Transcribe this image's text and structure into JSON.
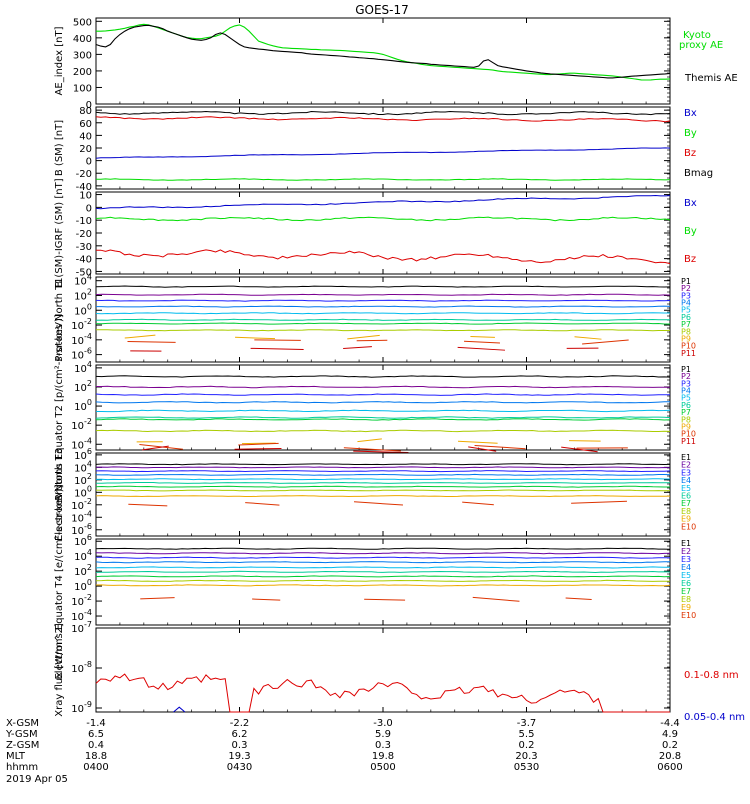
{
  "title": "GOES-17",
  "colors": {
    "black": "#000000",
    "green": "#00dd00",
    "blue": "#0000cc",
    "red": "#dd0000",
    "P": [
      "#000000",
      "#7a0090",
      "#2020ff",
      "#0077ee",
      "#00bbee",
      "#00cc99",
      "#00cc33",
      "#aacc00",
      "#eeaa00",
      "#dd3300",
      "#cc0000"
    ],
    "E": [
      "#000000",
      "#6a00a0",
      "#2020ff",
      "#0077ee",
      "#00bbee",
      "#00cc99",
      "#00cc33",
      "#aacc00",
      "#eeaa00",
      "#dd3300"
    ]
  },
  "footer": {
    "row_labels": [
      "X-GSM",
      "Y-GSM",
      "Z-GSM",
      "MLT",
      "hhmm"
    ],
    "date": "2019 Apr 05",
    "columns": [
      [
        "-1.4",
        "6.5",
        "0.4",
        "18.8",
        "0400"
      ],
      [
        "-2.2",
        "6.2",
        "0.3",
        "19.3",
        "0430"
      ],
      [
        "-3.0",
        "5.9",
        "0.3",
        "19.8",
        "0500"
      ],
      [
        "-3.7",
        "5.5",
        "0.2",
        "20.3",
        "0530"
      ],
      [
        "-4.4",
        "4.9",
        "0.2",
        "20.8",
        "0600"
      ]
    ]
  },
  "chart_data": [
    {
      "type": "line",
      "ylabel": "AE_index [nT]",
      "yticks": [
        "500",
        "400",
        "300",
        "200",
        "100",
        "0"
      ],
      "ylim": [
        0,
        520
      ],
      "x": [
        0,
        1,
        2,
        3,
        4,
        5,
        6,
        7,
        8,
        9,
        10,
        11,
        12,
        13,
        14,
        15,
        16,
        17,
        18,
        19,
        20,
        21,
        22,
        23,
        24,
        25,
        26,
        27,
        28,
        29,
        30,
        31,
        32,
        33,
        34,
        35,
        36,
        37,
        38,
        39,
        40,
        41,
        42,
        43,
        44,
        45,
        46,
        47,
        48,
        49,
        50,
        51,
        52,
        53,
        54,
        55,
        56,
        57,
        58,
        59,
        60,
        61,
        62,
        63,
        64,
        65,
        66,
        67,
        68,
        69,
        70,
        71,
        72,
        73,
        74,
        75,
        76,
        77,
        78,
        79,
        80,
        81,
        82,
        83,
        84,
        85,
        86,
        87,
        88,
        89,
        90,
        91,
        92,
        93,
        94,
        95,
        96,
        97,
        98,
        99,
        100,
        101,
        102,
        103,
        104,
        105,
        106,
        107,
        108,
        109,
        110,
        111,
        112,
        113,
        114,
        115,
        116,
        117,
        118,
        119,
        120
      ],
      "series": [
        {
          "name": "Kyoto proxy AE",
          "color": "#00dd00",
          "values": [
            440,
            440,
            442,
            445,
            448,
            452,
            458,
            465,
            470,
            478,
            482,
            478,
            470,
            460,
            450,
            440,
            430,
            420,
            410,
            402,
            398,
            395,
            395,
            400,
            405,
            410,
            420,
            440,
            460,
            472,
            478,
            465,
            440,
            410,
            380,
            370,
            360,
            352,
            345,
            340,
            338,
            336,
            335,
            334,
            332,
            330,
            330,
            328,
            327,
            326,
            325,
            324,
            322,
            320,
            318,
            316,
            314,
            312,
            310,
            306,
            300,
            290,
            280,
            270,
            262,
            255,
            250,
            246,
            240,
            236,
            232,
            230,
            228,
            226,
            224,
            222,
            220,
            218,
            216,
            214,
            212,
            210,
            208,
            205,
            200,
            196,
            194,
            192,
            190,
            188,
            186,
            184,
            182,
            180,
            178,
            178,
            180,
            182,
            184,
            186,
            186,
            184,
            182,
            180,
            178,
            176,
            174,
            172,
            170,
            166,
            162,
            158,
            154,
            150,
            146,
            145,
            146,
            148,
            150,
            150,
            152
          ]
        },
        {
          "name": "Themis AE",
          "color": "#000000",
          "values": [
            360,
            350,
            345,
            360,
            395,
            420,
            440,
            455,
            465,
            470,
            474,
            476,
            470,
            465,
            455,
            440,
            430,
            420,
            410,
            400,
            392,
            388,
            385,
            390,
            400,
            420,
            430,
            420,
            400,
            380,
            360,
            345,
            340,
            336,
            332,
            330,
            326,
            322,
            320,
            318,
            316,
            314,
            312,
            310,
            305,
            302,
            300,
            298,
            296,
            294,
            292,
            290,
            288,
            285,
            283,
            280,
            278,
            276,
            274,
            270,
            268,
            265,
            262,
            258,
            255,
            252,
            250,
            248,
            246,
            244,
            240,
            238,
            236,
            234,
            232,
            230,
            228,
            226,
            224,
            222,
            230,
            260,
            268,
            250,
            232,
            225,
            220,
            215,
            210,
            205,
            200,
            196,
            192,
            188,
            185,
            182,
            180,
            178,
            176,
            174,
            172,
            170,
            168,
            166,
            164,
            162,
            160,
            158,
            158,
            160,
            162,
            165,
            168,
            170,
            172,
            174,
            176,
            178,
            180,
            182,
            185
          ]
        }
      ]
    },
    {
      "type": "line",
      "ylabel": "B (SM) [nT]",
      "yticks": [
        "80",
        "60",
        "40",
        "20",
        "0",
        "-20",
        "-40"
      ],
      "ylim": [
        -45,
        85
      ],
      "series": [
        {
          "name": "Bx",
          "color": "#0000cc",
          "start": 4,
          "end": 20,
          "amp": 0.6
        },
        {
          "name": "By",
          "color": "#00dd00",
          "start": -30,
          "end": -30,
          "amp": 0.8
        },
        {
          "name": "Bz",
          "color": "#dd0000",
          "start": 68,
          "end": 64,
          "amp": 1.6
        },
        {
          "name": "Bmag",
          "color": "#000000",
          "start": 76,
          "end": 75,
          "amp": 1.8
        }
      ]
    },
    {
      "type": "line",
      "ylabel": "B (SM)-IGRF (SM) [nT]",
      "yticks": [
        "10",
        "0",
        "-10",
        "-20",
        "-30",
        "-40",
        "-50"
      ],
      "ylim": [
        -52,
        12
      ],
      "series": [
        {
          "name": "Bx",
          "color": "#0000cc",
          "start": -1,
          "end": 9,
          "amp": 0.6
        },
        {
          "name": "By",
          "color": "#00dd00",
          "start": -9,
          "end": -9,
          "amp": 1.0
        },
        {
          "name": "Bz",
          "color": "#dd0000",
          "start": -35,
          "end": -41,
          "amp": 2.4
        }
      ]
    },
    {
      "type": "line",
      "ylabel": "Protons North T1",
      "yscale": "log",
      "yticks": [
        "10^4",
        "10^2",
        "10^0",
        "10^-2",
        "10^-4",
        "10^-6"
      ],
      "ylim_exp": [
        -7,
        4.5
      ],
      "series": [
        {
          "name": "P1",
          "color": "#000000",
          "level": 3.2
        },
        {
          "name": "P2",
          "color": "#7a0090",
          "level": 2.1
        },
        {
          "name": "P3",
          "color": "#2020ff",
          "level": 1.3
        },
        {
          "name": "P4",
          "color": "#0077ee",
          "level": 0.5
        },
        {
          "name": "P5",
          "color": "#00bbee",
          "level": -0.4
        },
        {
          "name": "P6",
          "color": "#00cc99",
          "level": -1.3
        },
        {
          "name": "P7",
          "color": "#00cc33",
          "level": -1.8
        },
        {
          "name": "P8",
          "color": "#aacc00",
          "level": -2.7
        },
        {
          "name": "P9",
          "color": "#eeaa00",
          "level": -3.6,
          "sparse": true
        },
        {
          "name": "P10",
          "color": "#dd3300",
          "level": -4.3,
          "sparse": true
        },
        {
          "name": "P11",
          "color": "#cc0000",
          "level": -5.2,
          "sparse": true
        }
      ]
    },
    {
      "type": "line",
      "ylabel": "Protons Equator T2 [p/(cm²-s-sr-keV)]",
      "yscale": "log",
      "yticks": [
        "10^4",
        "10^2",
        "10^0",
        "10^-2",
        "10^-4"
      ],
      "ylim_exp": [
        -4.6,
        4.3
      ],
      "series": [
        {
          "name": "P1",
          "color": "#000000",
          "level": 3.1
        },
        {
          "name": "P2",
          "color": "#7a0090",
          "level": 2.0
        },
        {
          "name": "P3",
          "color": "#2020ff",
          "level": 1.2
        },
        {
          "name": "P4",
          "color": "#0077ee",
          "level": 0.4
        },
        {
          "name": "P5",
          "color": "#00bbee",
          "level": -0.5
        },
        {
          "name": "P6",
          "color": "#00cc99",
          "level": -1.2
        },
        {
          "name": "P7",
          "color": "#00cc33",
          "level": -1.4
        },
        {
          "name": "P8",
          "color": "#aacc00",
          "level": -2.6
        },
        {
          "name": "P9",
          "color": "#eeaa00",
          "level": -3.8,
          "sparse": true
        },
        {
          "name": "P10",
          "color": "#dd3300",
          "level": -4.3,
          "sparse": true
        },
        {
          "name": "P11",
          "color": "#cc0000",
          "level": -4.5,
          "sparse": true
        }
      ]
    },
    {
      "type": "line",
      "ylabel": "Electrons North T3",
      "yscale": "log",
      "yticks": [
        "10^6",
        "10^4",
        "10^2",
        "10^0",
        "10^-2",
        "10^-4",
        "10^-6"
      ],
      "ylim_exp": [
        -7,
        6.3
      ],
      "series": [
        {
          "name": "E1",
          "color": "#000000",
          "level": 4.5
        },
        {
          "name": "E2",
          "color": "#6a00a0",
          "level": 4.0
        },
        {
          "name": "E3",
          "color": "#2020ff",
          "level": 3.4
        },
        {
          "name": "E4",
          "color": "#0077ee",
          "level": 2.8
        },
        {
          "name": "E5",
          "color": "#00bbee",
          "level": 2.1
        },
        {
          "name": "E6",
          "color": "#00cc99",
          "level": 1.5
        },
        {
          "name": "E7",
          "color": "#00cc33",
          "level": 0.9
        },
        {
          "name": "E8",
          "color": "#aacc00",
          "level": 0.3
        },
        {
          "name": "E9",
          "color": "#eeaa00",
          "level": -0.6
        },
        {
          "name": "E10",
          "color": "#dd3300",
          "level": -1.8,
          "sparse": true
        }
      ]
    },
    {
      "type": "line",
      "ylabel": "Electrons Equator T4 [e/(cm²-s-sr-keV)]",
      "yscale": "log",
      "yticks": [
        "10^6",
        "10^4",
        "10^2",
        "10^0",
        "10^-2",
        "10^-4"
      ],
      "ylim_exp": [
        -5.2,
        6.3
      ],
      "series": [
        {
          "name": "E1",
          "color": "#000000",
          "level": 5.0
        },
        {
          "name": "E2",
          "color": "#6a00a0",
          "level": 4.4
        },
        {
          "name": "E3",
          "color": "#2020ff",
          "level": 3.8
        },
        {
          "name": "E4",
          "color": "#0077ee",
          "level": 3.2
        },
        {
          "name": "E5",
          "color": "#00bbee",
          "level": 2.5
        },
        {
          "name": "E6",
          "color": "#00cc99",
          "level": 1.9
        },
        {
          "name": "E7",
          "color": "#00cc33",
          "level": 1.3
        },
        {
          "name": "E8",
          "color": "#aacc00",
          "level": 0.7
        },
        {
          "name": "E9",
          "color": "#eeaa00",
          "level": 0.1
        },
        {
          "name": "E10",
          "color": "#dd3300",
          "level": -1.8,
          "sparse": true
        }
      ]
    },
    {
      "type": "line",
      "ylabel": "Xray flux [W/m^2]",
      "yscale": "log",
      "yticks": [
        "10^-7",
        "10^-8",
        "10^-9"
      ],
      "ylim_exp": [
        -9.1,
        -7
      ],
      "series": [
        {
          "name": "0.1-0.8 nm",
          "color": "#dd0000"
        },
        {
          "name": "0.05-0.4 nm",
          "color": "#0000cc"
        }
      ]
    }
  ]
}
